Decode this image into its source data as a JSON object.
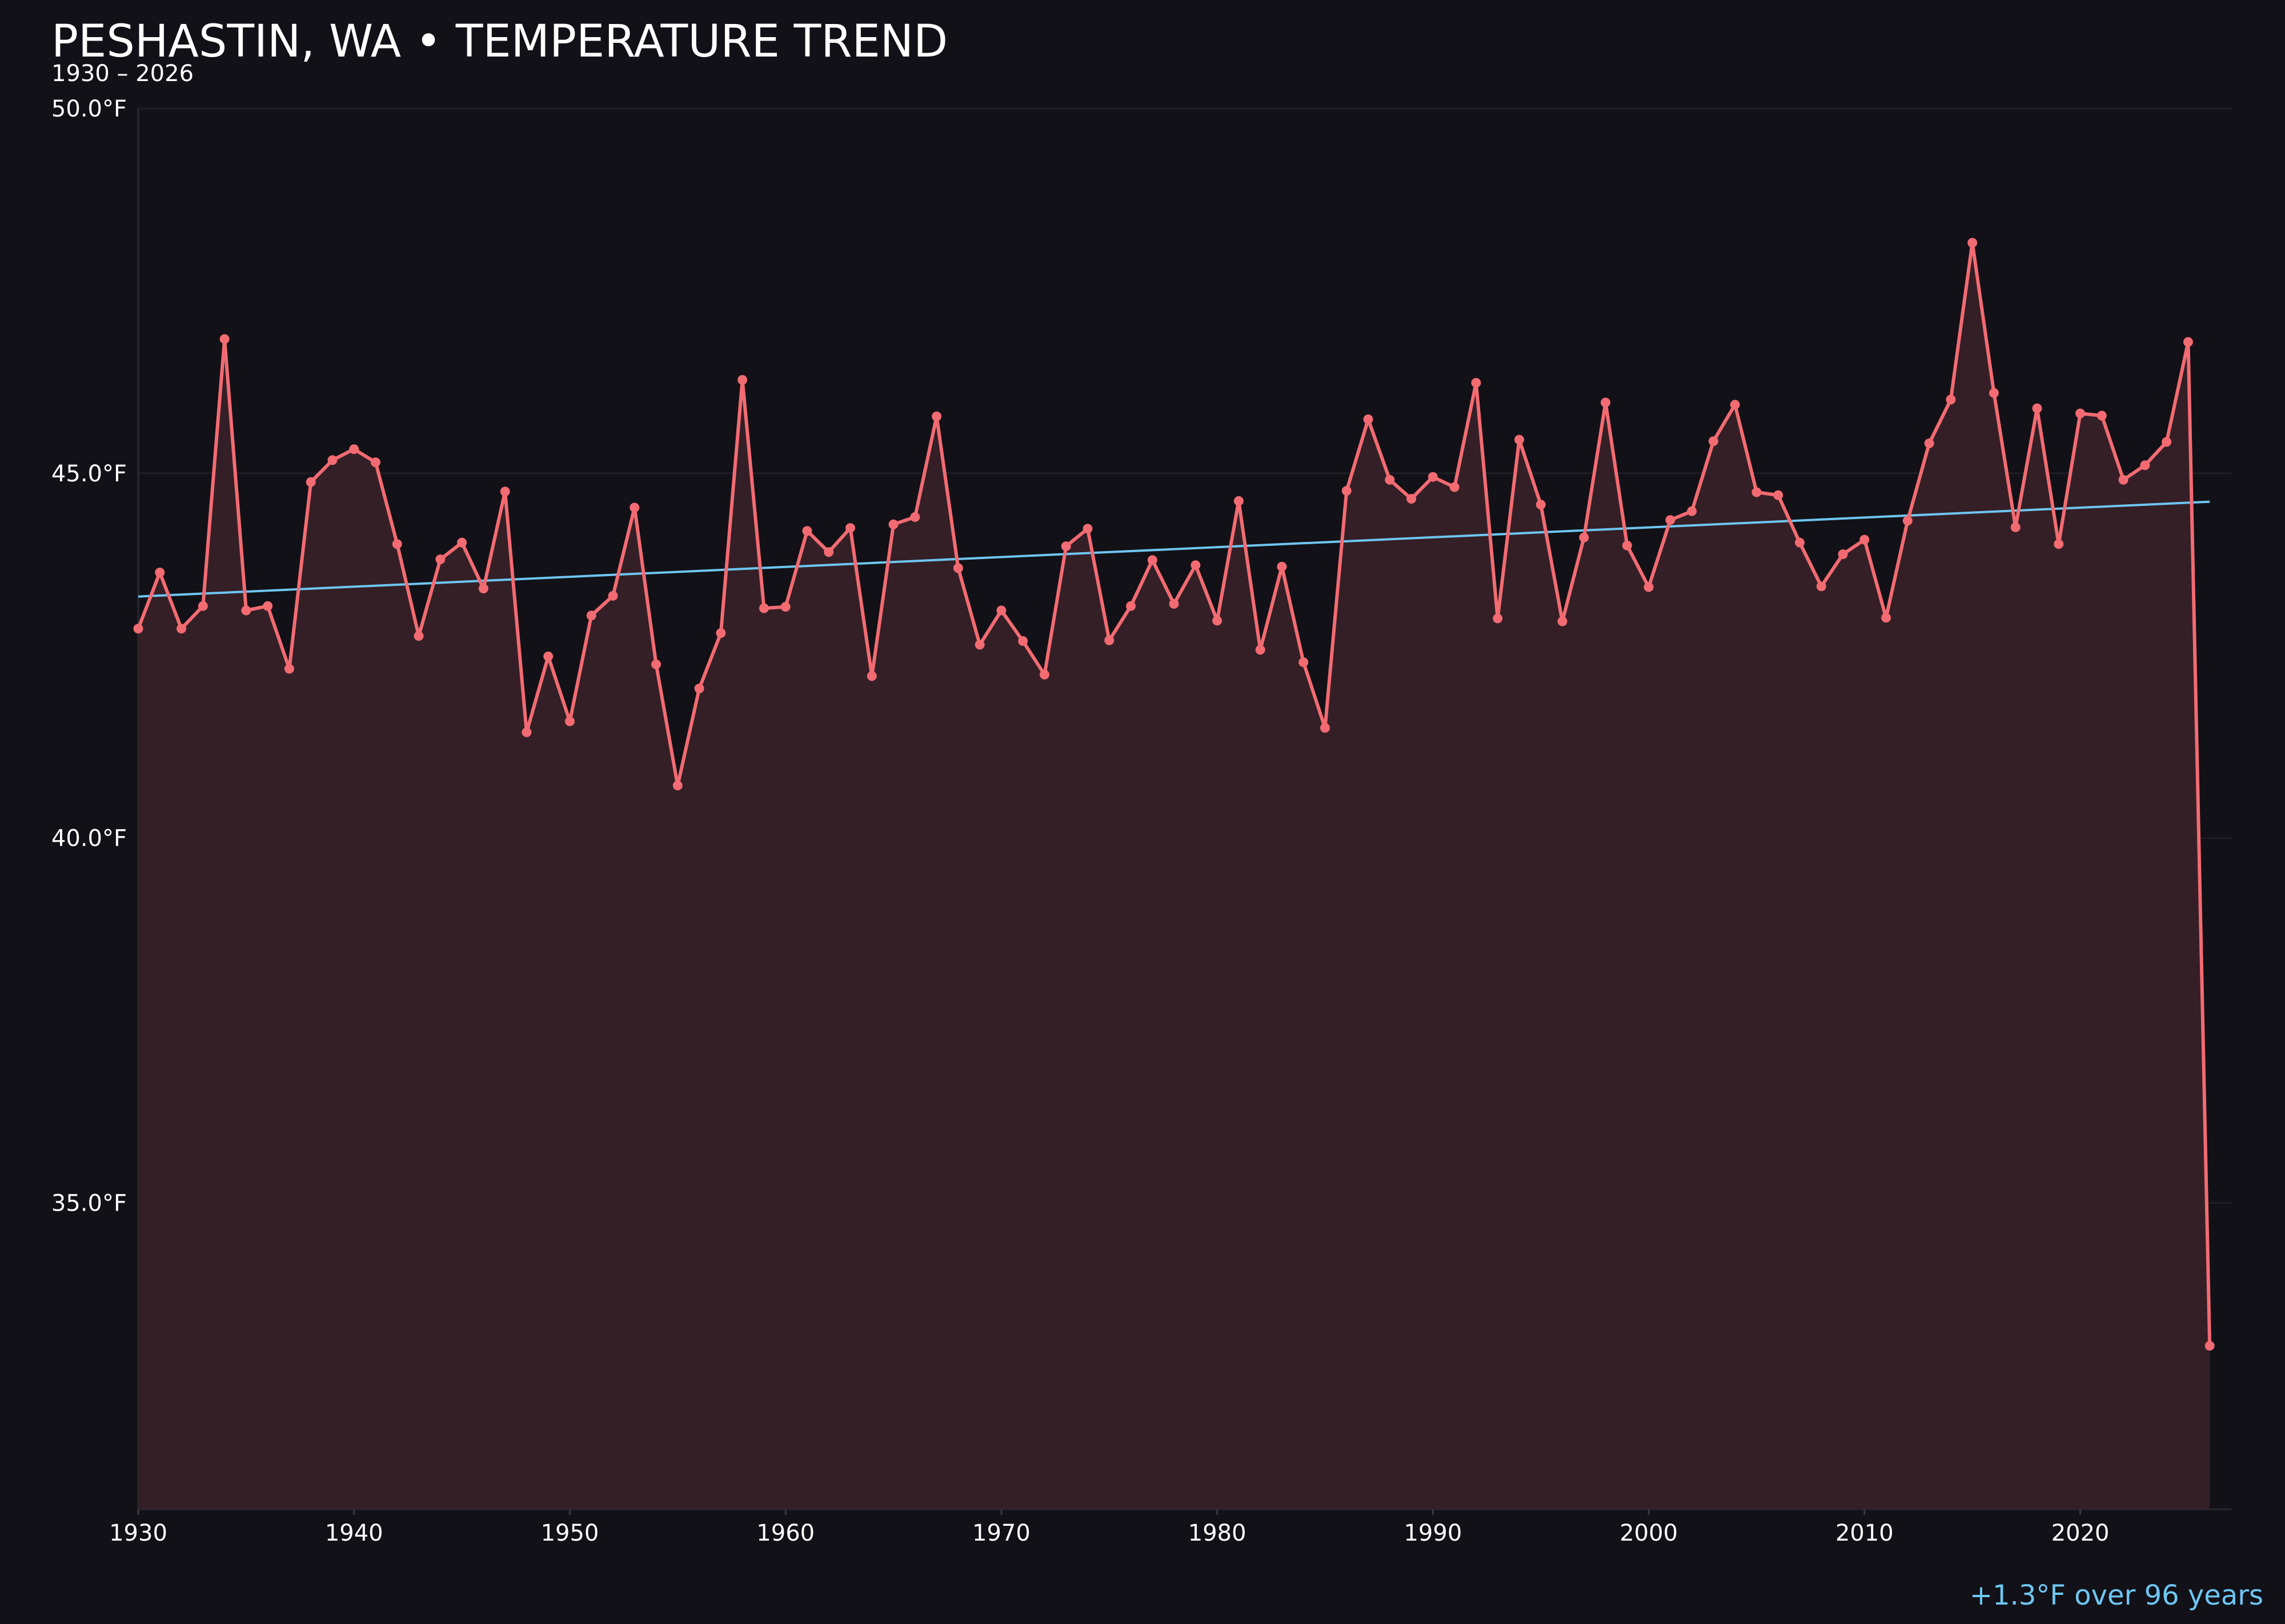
{
  "chart_data": {
    "type": "line",
    "title": "PESHASTIN, WA • TEMPERATURE TREND",
    "subtitle": "1930 – 2026",
    "xlabel": "",
    "ylabel": "",
    "xlim": [
      1930,
      2027
    ],
    "ylim": [
      30.8,
      50.0
    ],
    "x_ticks": [
      1930,
      1940,
      1950,
      1960,
      1970,
      1980,
      1990,
      2000,
      2010,
      2020
    ],
    "x_tick_labels": [
      "1930",
      "1940",
      "1950",
      "1960",
      "1970",
      "1980",
      "1990",
      "2000",
      "2010",
      "2020"
    ],
    "y_ticks": [
      35.0,
      40.0,
      45.0,
      50.0
    ],
    "y_tick_labels": [
      "35.0°F",
      "40.0°F",
      "45.0°F",
      "50.0°F"
    ],
    "grid": true,
    "series": [
      {
        "type": "line",
        "color": "#f26b72",
        "fill": "#341f26",
        "x": [
          1930,
          1931,
          1932,
          1933,
          1934,
          1935,
          1936,
          1937,
          1938,
          1939,
          1940,
          1941,
          1942,
          1943,
          1944,
          1945,
          1946,
          1947,
          1948,
          1949,
          1950,
          1951,
          1952,
          1953,
          1954,
          1955,
          1956,
          1957,
          1958,
          1959,
          1960,
          1961,
          1962,
          1963,
          1964,
          1965,
          1966,
          1967,
          1968,
          1969,
          1970,
          1971,
          1972,
          1973,
          1974,
          1975,
          1976,
          1977,
          1978,
          1979,
          1980,
          1981,
          1982,
          1983,
          1984,
          1985,
          1986,
          1987,
          1988,
          1989,
          1990,
          1991,
          1992,
          1993,
          1994,
          1995,
          1996,
          1997,
          1998,
          1999,
          2000,
          2001,
          2002,
          2003,
          2004,
          2005,
          2006,
          2007,
          2008,
          2009,
          2010,
          2011,
          2012,
          2013,
          2014,
          2015,
          2016,
          2017,
          2018,
          2019,
          2020,
          2021,
          2022,
          2023,
          2024,
          2025,
          2026
        ],
        "y": [
          42.87,
          43.64,
          42.87,
          43.18,
          46.84,
          43.12,
          43.18,
          42.32,
          44.88,
          45.18,
          45.33,
          45.15,
          44.03,
          42.77,
          43.82,
          44.05,
          43.42,
          44.75,
          41.45,
          42.49,
          41.6,
          43.05,
          43.32,
          44.53,
          42.38,
          40.72,
          42.05,
          42.81,
          46.28,
          43.15,
          43.17,
          44.21,
          43.92,
          44.25,
          42.22,
          44.3,
          44.4,
          45.78,
          43.7,
          42.65,
          43.12,
          42.7,
          42.24,
          44.0,
          44.24,
          42.71,
          43.18,
          43.81,
          43.21,
          43.74,
          42.98,
          44.62,
          42.58,
          43.72,
          42.41,
          41.51,
          44.76,
          45.74,
          44.91,
          44.65,
          44.95,
          44.81,
          46.24,
          43.01,
          45.46,
          44.57,
          42.97,
          44.12,
          45.97,
          44.01,
          43.44,
          44.36,
          44.48,
          45.44,
          45.94,
          44.74,
          44.7,
          44.05,
          43.45,
          43.89,
          44.09,
          43.02,
          44.35,
          45.41,
          46.01,
          48.16,
          46.1,
          44.26,
          45.89,
          44.03,
          45.82,
          45.79,
          44.91,
          45.11,
          45.43,
          46.8,
          33.04
        ]
      },
      {
        "type": "trend",
        "color": "#6ec6f2",
        "x": [
          1930,
          2026
        ],
        "y": [
          43.31,
          44.61
        ]
      }
    ],
    "annotation": {
      "text": "+1.3°F over 96 years",
      "color": "#6ec6f2"
    }
  }
}
